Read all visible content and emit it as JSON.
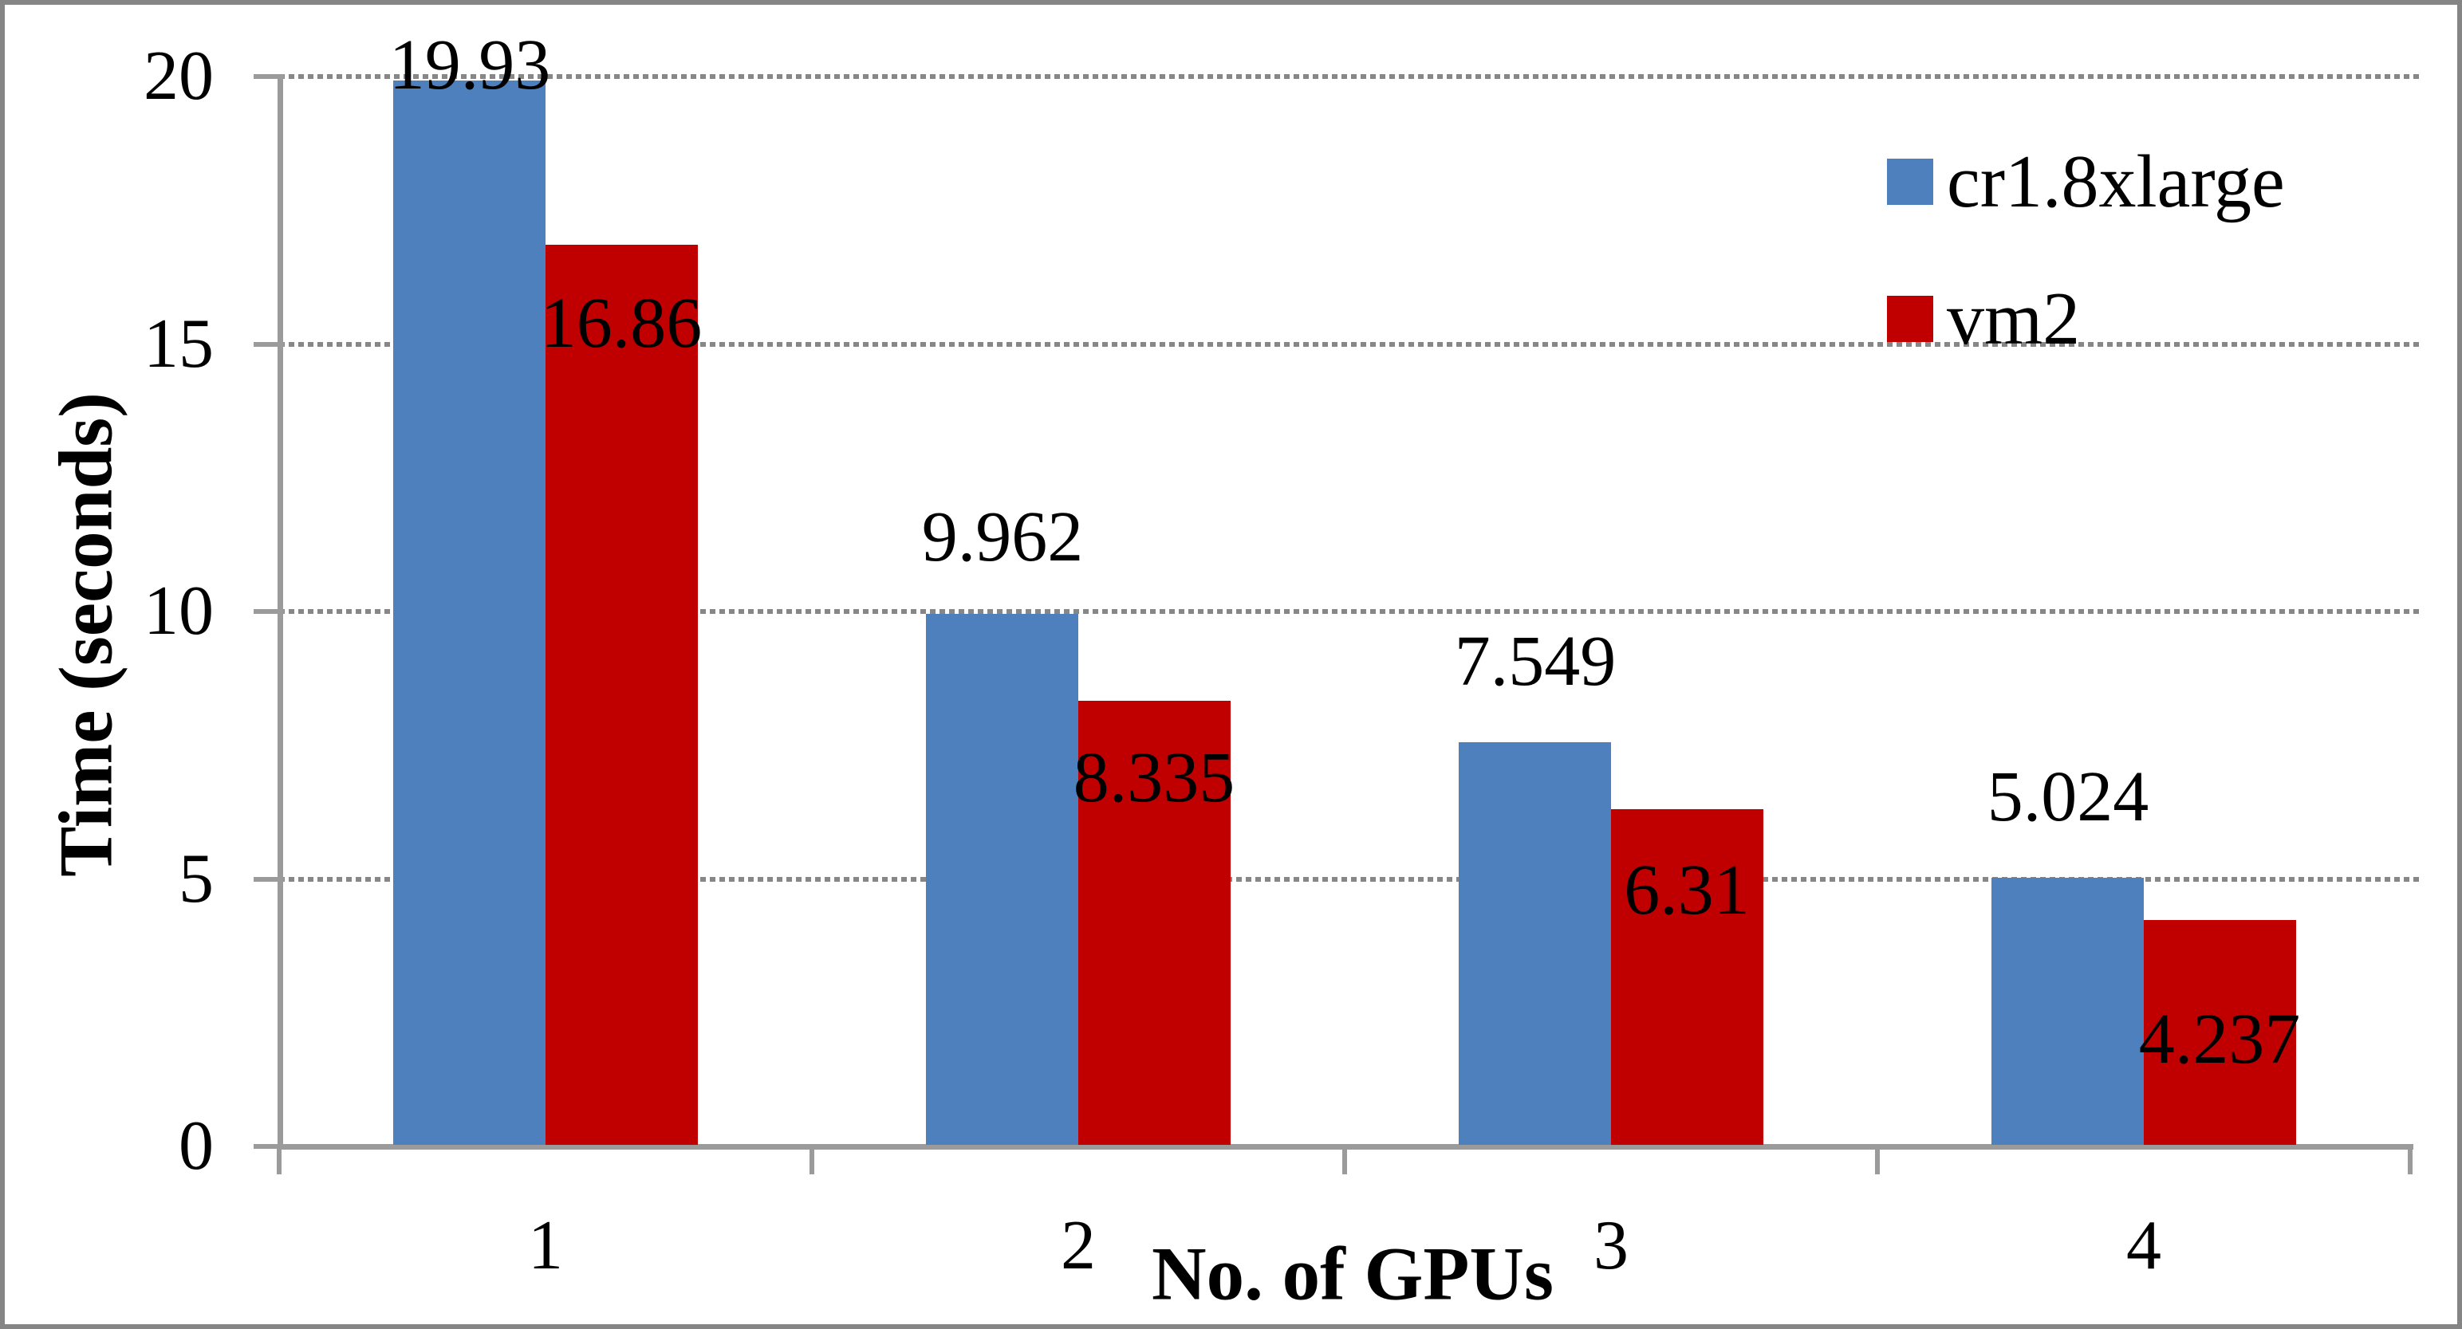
{
  "chart_data": {
    "type": "bar",
    "title": "",
    "xlabel": "No. of GPUs",
    "ylabel": "Time (seconds)",
    "categories": [
      "1",
      "2",
      "3",
      "4"
    ],
    "series": [
      {
        "name": "cr1.8xlarge",
        "color": "#4E80BD",
        "values": [
          19.93,
          9.962,
          7.549,
          5.024
        ],
        "data_labels": [
          "19.93",
          "9.962",
          "7.549",
          "5.024"
        ]
      },
      {
        "name": "vm2",
        "color": "#C00000",
        "values": [
          16.86,
          8.335,
          6.31,
          4.237
        ],
        "data_labels": [
          "16.86",
          "8.335",
          "6.31",
          "4.237"
        ]
      }
    ],
    "ylim": [
      0,
      20
    ],
    "yticks": [
      0,
      5,
      10,
      15,
      20
    ],
    "ytick_labels": [
      "0",
      "5",
      "10",
      "15",
      "20"
    ],
    "grid": "horizontal-dotted",
    "legend_position": "upper-right",
    "legend_entries": [
      "cr1.8xlarge",
      "vm2"
    ]
  },
  "frame": {
    "background": "#FFFFFF",
    "border_color": "#858585",
    "axis_color": "#9B9B9B",
    "gridline_color": "#878787",
    "text_color": "#000000"
  }
}
